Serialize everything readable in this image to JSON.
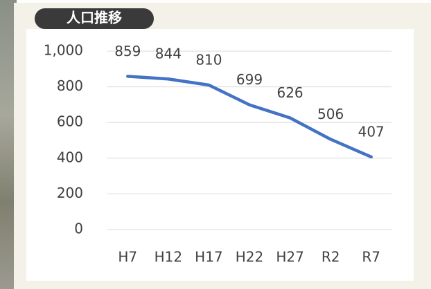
{
  "chart_data": {
    "type": "line",
    "title": "人口推移",
    "categories": [
      "H7",
      "H12",
      "H17",
      "H22",
      "H27",
      "R2",
      "R7"
    ],
    "values": [
      859,
      844,
      810,
      699,
      626,
      506,
      407
    ],
    "color": "#4472c4",
    "ylim": [
      0,
      1000
    ],
    "yticks": [
      0,
      200,
      400,
      600,
      800,
      {
        "value": 1000,
        "label": "1,000"
      }
    ],
    "grid": true
  }
}
